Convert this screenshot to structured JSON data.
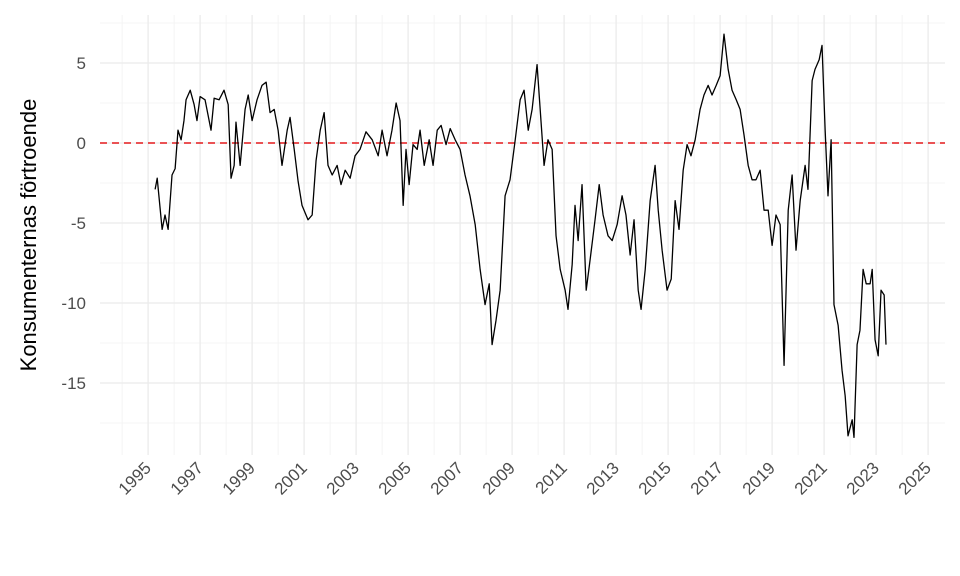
{
  "chart_data": {
    "type": "line",
    "y_label": "Konsumenternas förtroende",
    "x": [
      1995.27,
      1995.35,
      1995.54,
      1995.65,
      1995.77,
      1995.92,
      1996.04,
      1996.15,
      1996.27,
      1996.38,
      1996.46,
      1996.62,
      1996.77,
      1996.88,
      1997.0,
      1997.19,
      1997.42,
      1997.54,
      1997.73,
      1997.92,
      1998.08,
      1998.19,
      1998.31,
      1998.38,
      1998.54,
      1998.73,
      1998.85,
      1999.0,
      1999.19,
      1999.38,
      1999.54,
      1999.69,
      1999.85,
      2000.0,
      2000.15,
      2000.35,
      2000.46,
      2000.62,
      2000.77,
      2000.92,
      2001.15,
      2001.31,
      2001.46,
      2001.62,
      2001.77,
      2001.92,
      2002.08,
      2002.27,
      2002.42,
      2002.58,
      2002.77,
      2002.96,
      2003.15,
      2003.38,
      2003.62,
      2003.85,
      2004.0,
      2004.19,
      2004.38,
      2004.54,
      2004.69,
      2004.81,
      2004.92,
      2005.04,
      2005.19,
      2005.35,
      2005.46,
      2005.62,
      2005.81,
      2005.96,
      2006.12,
      2006.27,
      2006.46,
      2006.62,
      2006.81,
      2007.0,
      2007.19,
      2007.38,
      2007.58,
      2007.77,
      2007.96,
      2008.12,
      2008.23,
      2008.38,
      2008.54,
      2008.73,
      2008.92,
      2009.12,
      2009.31,
      2009.46,
      2009.62,
      2009.77,
      2009.96,
      2010.08,
      2010.23,
      2010.38,
      2010.54,
      2010.69,
      2010.85,
      2011.04,
      2011.15,
      2011.31,
      2011.42,
      2011.54,
      2011.69,
      2011.85,
      2012.0,
      2012.19,
      2012.35,
      2012.5,
      2012.69,
      2012.85,
      2013.04,
      2013.23,
      2013.38,
      2013.54,
      2013.69,
      2013.85,
      2013.96,
      2014.12,
      2014.31,
      2014.5,
      2014.62,
      2014.77,
      2014.96,
      2015.12,
      2015.27,
      2015.42,
      2015.58,
      2015.73,
      2015.88,
      2016.04,
      2016.23,
      2016.38,
      2016.54,
      2016.69,
      2016.85,
      2017.0,
      2017.15,
      2017.31,
      2017.46,
      2017.62,
      2017.77,
      2017.92,
      2018.08,
      2018.23,
      2018.38,
      2018.54,
      2018.69,
      2018.85,
      2019.0,
      2019.15,
      2019.31,
      2019.46,
      2019.62,
      2019.77,
      2019.92,
      2020.08,
      2020.27,
      2020.38,
      2020.54,
      2020.65,
      2020.81,
      2020.92,
      2021.04,
      2021.15,
      2021.27,
      2021.38,
      2021.54,
      2021.69,
      2021.81,
      2021.92,
      2022.08,
      2022.15,
      2022.27,
      2022.38,
      2022.5,
      2022.62,
      2022.77,
      2022.85,
      2022.96,
      2023.08,
      2023.19,
      2023.31,
      2023.38
    ],
    "values": [
      -2.9,
      -2.2,
      -5.4,
      -4.5,
      -5.4,
      -2,
      -1.6,
      0.8,
      0.2,
      1.4,
      2.7,
      3.3,
      2.4,
      1.4,
      2.9,
      2.7,
      0.8,
      2.8,
      2.7,
      3.3,
      2.4,
      -2.2,
      -1.4,
      1.3,
      -1.4,
      2.1,
      3,
      1.4,
      2.7,
      3.6,
      3.8,
      1.9,
      2.1,
      0.8,
      -1.4,
      0.8,
      1.6,
      -0.4,
      -2.4,
      -3.9,
      -4.8,
      -4.5,
      -1.1,
      0.8,
      1.9,
      -1.4,
      -2,
      -1.4,
      -2.6,
      -1.7,
      -2.2,
      -0.8,
      -0.4,
      0.7,
      0.2,
      -0.8,
      0.8,
      -0.8,
      0.8,
      2.5,
      1.4,
      -3.9,
      -0.4,
      -2.6,
      -0.1,
      -0.4,
      0.8,
      -1.4,
      0.2,
      -1.4,
      0.8,
      1.1,
      -0.1,
      0.9,
      0.2,
      -0.4,
      -2,
      -3.3,
      -5.1,
      -7.9,
      -10.1,
      -8.8,
      -12.6,
      -11.1,
      -9.2,
      -3.3,
      -2.3,
      0.2,
      2.7,
      3.3,
      0.8,
      2.1,
      4.9,
      2.1,
      -1.4,
      0.2,
      -0.4,
      -5.8,
      -7.9,
      -9.2,
      -10.4,
      -7.6,
      -3.9,
      -6.1,
      -2.6,
      -9.2,
      -7.3,
      -4.8,
      -2.6,
      -4.5,
      -5.8,
      -6.1,
      -5.1,
      -3.3,
      -4.5,
      -7,
      -4.8,
      -9.2,
      -10.4,
      -7.9,
      -3.6,
      -1.4,
      -4.2,
      -6.7,
      -9.2,
      -8.5,
      -3.6,
      -5.4,
      -1.7,
      -0.1,
      -0.8,
      0.2,
      2.1,
      3,
      3.6,
      3,
      3.6,
      4.2,
      6.8,
      4.6,
      3.3,
      2.7,
      2.1,
      0.5,
      -1.4,
      -2.3,
      -2.3,
      -1.7,
      -4.2,
      -4.2,
      -6.4,
      -4.5,
      -5.1,
      -13.9,
      -4.2,
      -2,
      -6.7,
      -3.6,
      -1.4,
      -2.9,
      3.9,
      4.6,
      5.2,
      6.1,
      0.8,
      -3.3,
      0.2,
      -10.1,
      -11.4,
      -14.2,
      -15.8,
      -18.3,
      -17.3,
      -18.4,
      -12.6,
      -11.7,
      -7.9,
      -8.8,
      -8.8,
      -7.9,
      -12.3,
      -13.3,
      -9.2,
      -9.5,
      -12.6
    ],
    "color": "#000000",
    "hline": 0,
    "hline_color": "#e41a1c",
    "xlim": [
      1993.15,
      2025.65
    ],
    "xticks": [
      1995,
      1997,
      1999,
      2001,
      2003,
      2005,
      2007,
      2009,
      2011,
      2013,
      2015,
      2017,
      2019,
      2021,
      2023,
      2025
    ],
    "x_minor_ticks": [
      1994,
      1996,
      1998,
      2000,
      2002,
      2004,
      2006,
      2008,
      2010,
      2012,
      2014,
      2016,
      2018,
      2020,
      2022,
      2024
    ],
    "ylim": [
      -19.5,
      8
    ],
    "yticks": [
      -15,
      -10,
      -5,
      0,
      5
    ],
    "y_minor_ticks": [
      -17.5,
      -12.5,
      -7.5,
      -2.5,
      2.5,
      7.5
    ],
    "grid": true
  }
}
